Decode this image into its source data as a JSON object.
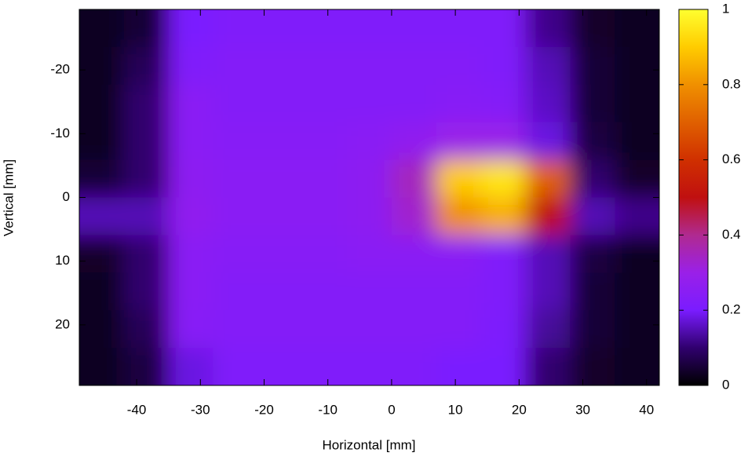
{
  "chart_data": {
    "type": "heatmap",
    "xlabel": "Horizontal [mm]",
    "ylabel": "Vertical [mm]",
    "xlim": [
      -49,
      42
    ],
    "ylim": [
      -29.5,
      29.5
    ],
    "y_inverted": true,
    "xticks": [
      -40,
      -30,
      -20,
      -10,
      0,
      10,
      20,
      30,
      40
    ],
    "yticks": [
      -20,
      -10,
      0,
      10,
      20
    ],
    "z": [
      [
        0.03,
        0.05,
        0.2,
        0.22,
        0.22,
        0.22,
        0.22,
        0.22,
        0.22,
        0.22,
        0.12,
        0.04,
        0.03
      ],
      [
        0.03,
        0.08,
        0.22,
        0.23,
        0.23,
        0.23,
        0.23,
        0.23,
        0.23,
        0.22,
        0.15,
        0.05,
        0.03
      ],
      [
        0.03,
        0.1,
        0.25,
        0.23,
        0.23,
        0.23,
        0.23,
        0.23,
        0.24,
        0.23,
        0.16,
        0.05,
        0.03
      ],
      [
        0.03,
        0.1,
        0.25,
        0.24,
        0.24,
        0.24,
        0.25,
        0.27,
        0.3,
        0.3,
        0.18,
        0.06,
        0.03
      ],
      [
        0.05,
        0.1,
        0.26,
        0.25,
        0.25,
        0.25,
        0.26,
        0.35,
        0.9,
        0.95,
        0.7,
        0.1,
        0.04
      ],
      [
        0.15,
        0.15,
        0.27,
        0.25,
        0.25,
        0.25,
        0.26,
        0.33,
        0.8,
        0.85,
        0.5,
        0.15,
        0.12
      ],
      [
        0.04,
        0.1,
        0.25,
        0.24,
        0.24,
        0.24,
        0.25,
        0.25,
        0.25,
        0.22,
        0.15,
        0.06,
        0.03
      ],
      [
        0.03,
        0.1,
        0.25,
        0.23,
        0.23,
        0.23,
        0.23,
        0.23,
        0.23,
        0.22,
        0.15,
        0.05,
        0.03
      ],
      [
        0.03,
        0.08,
        0.24,
        0.23,
        0.23,
        0.23,
        0.23,
        0.23,
        0.23,
        0.21,
        0.13,
        0.05,
        0.03
      ],
      [
        0.03,
        0.06,
        0.18,
        0.22,
        0.22,
        0.22,
        0.22,
        0.22,
        0.2,
        0.2,
        0.1,
        0.04,
        0.03
      ]
    ],
    "colorbar": {
      "lim": [
        0,
        1
      ],
      "ticks": [
        0,
        0.2,
        0.4,
        0.6,
        0.8,
        1
      ]
    },
    "colormap": [
      [
        0,
        "#000000"
      ],
      [
        0.1,
        "#30006e"
      ],
      [
        0.2,
        "#7a1cff"
      ],
      [
        0.3,
        "#9a20e8"
      ],
      [
        0.4,
        "#b02a90"
      ],
      [
        0.5,
        "#c01010"
      ],
      [
        0.6,
        "#d03000"
      ],
      [
        0.7,
        "#e06000"
      ],
      [
        0.8,
        "#f09000"
      ],
      [
        0.9,
        "#ffcc00"
      ],
      [
        1,
        "#ffff30"
      ]
    ]
  }
}
